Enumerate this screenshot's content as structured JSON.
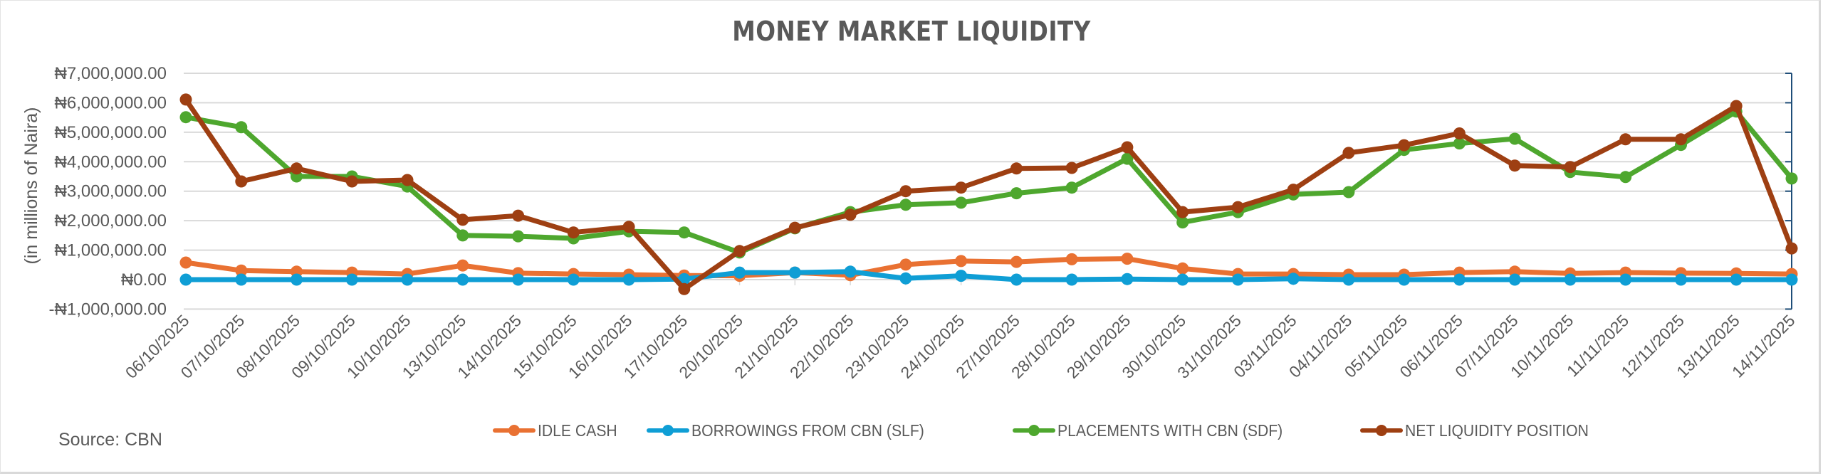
{
  "title": "MONEY MARKET LIQUIDITY",
  "y_axis_title": "(in millions of Naira)",
  "source": "Source: CBN",
  "colors": {
    "idle_cash": "#E97132",
    "borrowings": "#0F9ED5",
    "placements": "#4EA72E",
    "net": "#9E3F12",
    "grid": "#d9d9d9",
    "right_axis": "#1f4e79",
    "text": "#595959"
  },
  "legend": [
    {
      "key": "idle_cash",
      "label": "IDLE CASH"
    },
    {
      "key": "borrowings",
      "label": "BORROWINGS FROM CBN (SLF)"
    },
    {
      "key": "placements",
      "label": "PLACEMENTS WITH CBN (SDF)"
    },
    {
      "key": "net",
      "label": "NET LIQUIDITY POSITION"
    }
  ],
  "y_ticks": [
    {
      "value": 7000000,
      "label": "₦7,000,000.00"
    },
    {
      "value": 6000000,
      "label": "₦6,000,000.00"
    },
    {
      "value": 5000000,
      "label": "₦5,000,000.00"
    },
    {
      "value": 4000000,
      "label": "₦4,000,000.00"
    },
    {
      "value": 3000000,
      "label": "₦3,000,000.00"
    },
    {
      "value": 2000000,
      "label": "₦2,000,000.00"
    },
    {
      "value": 1000000,
      "label": "₦1,000,000.00"
    },
    {
      "value": 0,
      "label": "₦0.00"
    },
    {
      "value": -1000000,
      "label": "-₦1,000,000.00"
    }
  ],
  "chart_data": {
    "type": "line",
    "title": "MONEY MARKET LIQUIDITY",
    "xlabel": "",
    "ylabel": "(in millions of Naira)",
    "ylim": [
      -1000000,
      7000000
    ],
    "grid": true,
    "legend_position": "bottom",
    "categories": [
      "06/10/2025",
      "07/10/2025",
      "08/10/2025",
      "09/10/2025",
      "10/10/2025",
      "13/10/2025",
      "14/10/2025",
      "15/10/2025",
      "16/10/2025",
      "17/10/2025",
      "20/10/2025",
      "21/10/2025",
      "22/10/2025",
      "23/10/2025",
      "24/10/2025",
      "27/10/2025",
      "28/10/2025",
      "29/10/2025",
      "30/10/2025",
      "31/10/2025",
      "03/11/2025",
      "04/11/2025",
      "05/11/2025",
      "06/11/2025",
      "07/11/2025",
      "10/11/2025",
      "11/11/2025",
      "12/11/2025",
      "13/11/2025",
      "14/11/2025"
    ],
    "series": [
      {
        "name": "IDLE CASH",
        "key": "idle_cash",
        "values": [
          580000,
          310000,
          270000,
          240000,
          190000,
          480000,
          220000,
          190000,
          170000,
          140000,
          130000,
          240000,
          150000,
          510000,
          630000,
          600000,
          690000,
          710000,
          380000,
          190000,
          190000,
          170000,
          170000,
          240000,
          270000,
          210000,
          240000,
          220000,
          210000,
          190000
        ]
      },
      {
        "name": "BORROWINGS FROM CBN (SLF)",
        "key": "borrowings",
        "values": [
          0,
          0,
          0,
          0,
          0,
          0,
          0,
          0,
          0,
          20000,
          240000,
          240000,
          270000,
          40000,
          130000,
          0,
          0,
          20000,
          0,
          0,
          30000,
          0,
          0,
          0,
          0,
          0,
          0,
          0,
          0,
          0
        ]
      },
      {
        "name": "PLACEMENTS WITH CBN (SDF)",
        "key": "placements",
        "values": [
          5510000,
          5170000,
          3500000,
          3500000,
          3160000,
          1500000,
          1470000,
          1400000,
          1640000,
          1600000,
          920000,
          1740000,
          2290000,
          2540000,
          2610000,
          2930000,
          3120000,
          4100000,
          1940000,
          2290000,
          2890000,
          2970000,
          4400000,
          4620000,
          4780000,
          3650000,
          3480000,
          4570000,
          5700000,
          3430000
        ]
      },
      {
        "name": "NET LIQUIDITY POSITION",
        "key": "net",
        "values": [
          6110000,
          3330000,
          3770000,
          3330000,
          3380000,
          2030000,
          2170000,
          1600000,
          1790000,
          -320000,
          970000,
          1760000,
          2200000,
          3000000,
          3120000,
          3770000,
          3790000,
          4490000,
          2290000,
          2460000,
          3050000,
          4300000,
          4560000,
          4960000,
          3870000,
          3820000,
          4760000,
          4760000,
          5890000,
          1060000
        ]
      }
    ]
  }
}
